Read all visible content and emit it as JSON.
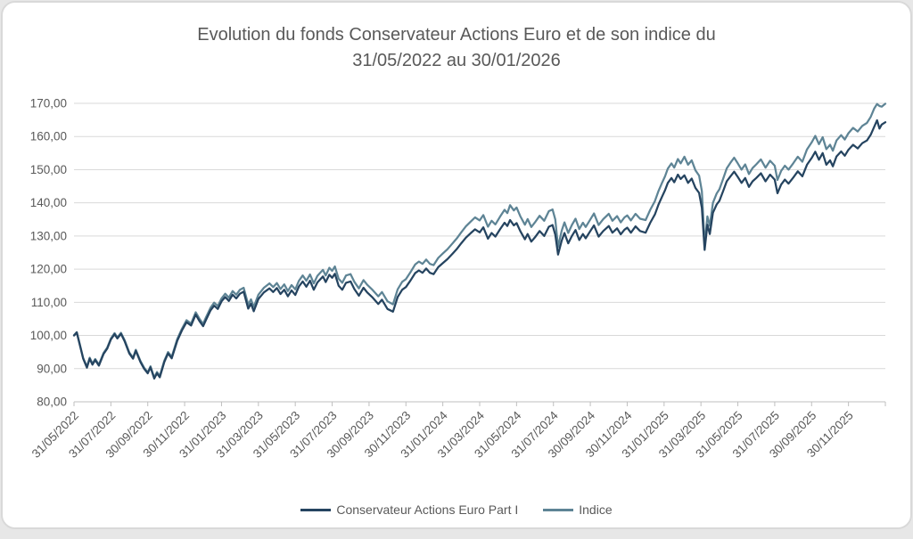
{
  "chart_data": {
    "type": "line",
    "title_line1": "Evolution du fonds Conservateur Actions Euro et de son indice du",
    "title_line2": "31/05/2022 au 30/01/2026",
    "grid": true,
    "legend_position": "bottom",
    "ylim": [
      80,
      170
    ],
    "y_tick_step": 10,
    "y_tick_labels": [
      "80,00",
      "90,00",
      "100,00",
      "110,00",
      "120,00",
      "130,00",
      "140,00",
      "150,00",
      "160,00",
      "170,00"
    ],
    "x_months_total": 44,
    "x_tick_interval_months": 2,
    "x_tick_labels": [
      "31/05/2022",
      "31/07/2022",
      "30/09/2022",
      "30/11/2022",
      "31/01/2023",
      "31/03/2023",
      "31/05/2023",
      "31/07/2023",
      "30/09/2023",
      "30/11/2023",
      "31/01/2024",
      "31/03/2024",
      "31/05/2024",
      "31/07/2024",
      "30/09/2024",
      "30/11/2024",
      "31/01/2025",
      "31/03/2025",
      "31/05/2025",
      "31/07/2025",
      "30/09/2025",
      "30/11/2025"
    ],
    "series": [
      {
        "name": "Conservateur Actions Euro Part I",
        "color": "#254460"
      },
      {
        "name": "Indice",
        "color": "#5e8495"
      }
    ],
    "colors": {
      "grid": "#d9d9d9",
      "axis": "#bfbfbf",
      "text": "#595959"
    },
    "points_format": [
      "months_since_start",
      "fund_value",
      "indice_value"
    ],
    "points": [
      [
        0,
        100,
        100.1
      ],
      [
        0.15,
        100.9,
        101
      ],
      [
        0.3,
        97.5,
        97.7
      ],
      [
        0.5,
        93,
        93.2
      ],
      [
        0.7,
        90.3,
        90.6
      ],
      [
        0.85,
        93,
        93.3
      ],
      [
        1,
        91.2,
        91.5
      ],
      [
        1.15,
        92.6,
        92.9
      ],
      [
        1.35,
        90.9,
        91.2
      ],
      [
        1.6,
        94.4,
        94.7
      ],
      [
        1.8,
        96,
        96.3
      ],
      [
        2,
        98.8,
        99.1
      ],
      [
        2.2,
        100.4,
        100.7
      ],
      [
        2.35,
        99.1,
        99.4
      ],
      [
        2.55,
        100.5,
        100.8
      ],
      [
        2.75,
        98.2,
        98.5
      ],
      [
        3,
        94.6,
        94.9
      ],
      [
        3.2,
        93,
        93.3
      ],
      [
        3.35,
        95.4,
        95.7
      ],
      [
        3.6,
        92,
        92.3
      ],
      [
        3.8,
        90,
        90.3
      ],
      [
        4,
        88.6,
        88.9
      ],
      [
        4.15,
        90.4,
        90.7
      ],
      [
        4.35,
        87,
        87.3
      ],
      [
        4.5,
        88.6,
        89
      ],
      [
        4.65,
        87.4,
        87.8
      ],
      [
        4.9,
        92,
        92.4
      ],
      [
        5.1,
        94.6,
        95
      ],
      [
        5.3,
        93.1,
        93.6
      ],
      [
        5.6,
        98.4,
        98.9
      ],
      [
        5.85,
        101.5,
        102
      ],
      [
        6.1,
        104,
        104.6
      ],
      [
        6.35,
        103,
        103.6
      ],
      [
        6.6,
        106.3,
        107
      ],
      [
        6.8,
        104.4,
        105.1
      ],
      [
        7,
        102.8,
        103.5
      ],
      [
        7.15,
        104.6,
        105.4
      ],
      [
        7.4,
        107.5,
        108.3
      ],
      [
        7.6,
        109,
        109.9
      ],
      [
        7.8,
        108,
        108.9
      ],
      [
        8,
        110.3,
        111.2
      ],
      [
        8.2,
        111.6,
        112.6
      ],
      [
        8.4,
        110.4,
        111.4
      ],
      [
        8.6,
        112.3,
        113.4
      ],
      [
        8.8,
        111.2,
        112.3
      ],
      [
        9,
        112.6,
        113.8
      ],
      [
        9.2,
        113.2,
        114.4
      ],
      [
        9.45,
        108.1,
        109.3
      ],
      [
        9.6,
        109.6,
        110.9
      ],
      [
        9.75,
        107.3,
        108.6
      ],
      [
        10,
        111,
        112.3
      ],
      [
        10.3,
        113,
        114.4
      ],
      [
        10.6,
        114.2,
        115.7
      ],
      [
        10.8,
        113.1,
        114.6
      ],
      [
        11,
        114.3,
        115.8
      ],
      [
        11.2,
        112.5,
        114
      ],
      [
        11.4,
        113.8,
        115.4
      ],
      [
        11.6,
        111.8,
        113.4
      ],
      [
        11.8,
        113.6,
        115.2
      ],
      [
        12,
        112.2,
        113.9
      ],
      [
        12.2,
        114.8,
        116.5
      ],
      [
        12.4,
        116.3,
        118.1
      ],
      [
        12.6,
        114.7,
        116.5
      ],
      [
        12.8,
        116.5,
        118.4
      ],
      [
        13,
        113.8,
        115.7
      ],
      [
        13.2,
        116,
        118
      ],
      [
        13.5,
        117.8,
        119.8
      ],
      [
        13.65,
        116.1,
        118.1
      ],
      [
        13.85,
        118.3,
        120.4
      ],
      [
        14,
        117.4,
        119.5
      ],
      [
        14.15,
        118.6,
        120.8
      ],
      [
        14.35,
        115,
        117.1
      ],
      [
        14.55,
        113.8,
        115.9
      ],
      [
        14.75,
        115.9,
        118.1
      ],
      [
        15,
        116.3,
        118.5
      ],
      [
        15.2,
        114,
        116.2
      ],
      [
        15.45,
        112,
        114.2
      ],
      [
        15.7,
        114.4,
        116.7
      ],
      [
        15.9,
        113,
        115.3
      ],
      [
        16.2,
        111.4,
        113.7
      ],
      [
        16.5,
        109.5,
        111.8
      ],
      [
        16.7,
        110.8,
        113.1
      ],
      [
        17,
        108,
        110.3
      ],
      [
        17.3,
        107.2,
        109.4
      ],
      [
        17.55,
        111.6,
        113.9
      ],
      [
        17.8,
        113.8,
        116.2
      ],
      [
        18,
        114.6,
        117
      ],
      [
        18.25,
        116.6,
        119.1
      ],
      [
        18.5,
        118.8,
        121.4
      ],
      [
        18.7,
        119.6,
        122.3
      ],
      [
        18.9,
        118.9,
        121.6
      ],
      [
        19.1,
        120.2,
        122.9
      ],
      [
        19.3,
        118.9,
        121.6
      ],
      [
        19.5,
        118.5,
        121.2
      ],
      [
        19.75,
        120.6,
        123.4
      ],
      [
        20,
        121.8,
        124.7
      ],
      [
        20.25,
        123,
        126
      ],
      [
        20.5,
        124.5,
        127.6
      ],
      [
        20.75,
        126,
        129.2
      ],
      [
        21,
        127.8,
        131.1
      ],
      [
        21.25,
        129.5,
        132.9
      ],
      [
        21.5,
        130.8,
        134.3
      ],
      [
        21.75,
        132,
        135.6
      ],
      [
        22,
        131.1,
        134.7
      ],
      [
        22.2,
        132.6,
        136.3
      ],
      [
        22.45,
        129.2,
        132.8
      ],
      [
        22.65,
        130.9,
        134.6
      ],
      [
        22.85,
        129.8,
        133.5
      ],
      [
        23.1,
        132,
        135.8
      ],
      [
        23.35,
        134,
        137.9
      ],
      [
        23.5,
        133,
        136.9
      ],
      [
        23.65,
        134.8,
        139.3
      ],
      [
        23.85,
        133.2,
        137.7
      ],
      [
        24,
        133.9,
        138.6
      ],
      [
        24.2,
        131.5,
        136
      ],
      [
        24.45,
        129,
        133.4
      ],
      [
        24.6,
        130.6,
        135.1
      ],
      [
        24.8,
        128.3,
        132.7
      ],
      [
        25,
        129.6,
        134.1
      ],
      [
        25.25,
        131.5,
        136.1
      ],
      [
        25.5,
        130,
        134.6
      ],
      [
        25.75,
        132.8,
        137.5
      ],
      [
        25.95,
        133.3,
        138
      ],
      [
        26.1,
        130.4,
        135
      ],
      [
        26.25,
        124.4,
        126.7
      ],
      [
        26.45,
        128.6,
        131.6
      ],
      [
        26.6,
        130.9,
        134.1
      ],
      [
        26.8,
        127.8,
        130.9
      ],
      [
        27,
        130,
        133.3
      ],
      [
        27.2,
        131.8,
        135.2
      ],
      [
        27.4,
        128.8,
        132.1
      ],
      [
        27.6,
        130.6,
        134
      ],
      [
        27.75,
        129.3,
        132.7
      ],
      [
        28,
        131.5,
        135
      ],
      [
        28.2,
        133.2,
        136.8
      ],
      [
        28.45,
        129.8,
        133.3
      ],
      [
        28.7,
        131.5,
        135.1
      ],
      [
        29,
        133,
        136.7
      ],
      [
        29.2,
        131,
        134.6
      ],
      [
        29.45,
        132.3,
        136
      ],
      [
        29.65,
        130.5,
        134.1
      ],
      [
        29.85,
        131.9,
        135.6
      ],
      [
        30,
        132.5,
        136.2
      ],
      [
        30.2,
        131,
        134.7
      ],
      [
        30.45,
        132.9,
        136.7
      ],
      [
        30.7,
        131.5,
        135.2
      ],
      [
        31,
        131,
        134.8
      ],
      [
        31.25,
        134,
        137.9
      ],
      [
        31.5,
        136.5,
        140.5
      ],
      [
        31.7,
        139.5,
        143.6
      ],
      [
        31.9,
        142,
        146.2
      ],
      [
        32.05,
        143.8,
        148
      ],
      [
        32.2,
        146,
        150.3
      ],
      [
        32.4,
        147.5,
        151.9
      ],
      [
        32.55,
        146.2,
        150.6
      ],
      [
        32.75,
        148.5,
        153.2
      ],
      [
        32.9,
        147.2,
        151.9
      ],
      [
        33.1,
        148.3,
        153.9
      ],
      [
        33.3,
        146,
        151.5
      ],
      [
        33.5,
        147.3,
        152.8
      ],
      [
        33.7,
        144.5,
        149.8
      ],
      [
        33.9,
        143,
        148.2
      ],
      [
        34.05,
        138.5,
        143.5
      ],
      [
        34.2,
        125.8,
        127.4
      ],
      [
        34.35,
        133.4,
        135.9
      ],
      [
        34.48,
        130.6,
        133.1
      ],
      [
        34.65,
        137,
        140
      ],
      [
        34.85,
        139.5,
        142.8
      ],
      [
        35,
        140.6,
        144.1
      ],
      [
        35.2,
        143.5,
        147.2
      ],
      [
        35.4,
        146.5,
        150.4
      ],
      [
        35.6,
        148,
        152.1
      ],
      [
        35.8,
        149.4,
        153.6
      ],
      [
        36,
        147.8,
        151.9
      ],
      [
        36.2,
        146,
        150
      ],
      [
        36.4,
        147.5,
        151.6
      ],
      [
        36.6,
        144.8,
        148.7
      ],
      [
        36.8,
        146.5,
        150.5
      ],
      [
        37,
        147.5,
        151.6
      ],
      [
        37.25,
        148.9,
        153.1
      ],
      [
        37.5,
        146.5,
        150.6
      ],
      [
        37.75,
        148.5,
        152.7
      ],
      [
        38,
        147,
        151.2
      ],
      [
        38.15,
        142.9,
        146.9
      ],
      [
        38.35,
        145.5,
        149.6
      ],
      [
        38.55,
        147,
        151.2
      ],
      [
        38.75,
        145.8,
        150
      ],
      [
        39,
        147.6,
        151.9
      ],
      [
        39.25,
        149.5,
        153.9
      ],
      [
        39.5,
        148,
        152.4
      ],
      [
        39.75,
        151.5,
        156.1
      ],
      [
        40,
        153.5,
        158.2
      ],
      [
        40.2,
        155.4,
        160.2
      ],
      [
        40.4,
        153,
        157.7
      ],
      [
        40.6,
        155,
        159.8
      ],
      [
        40.8,
        151.5,
        156.2
      ],
      [
        41,
        152.8,
        157.5
      ],
      [
        41.15,
        151,
        155.7
      ],
      [
        41.35,
        154,
        158.8
      ],
      [
        41.6,
        155.5,
        160.4
      ],
      [
        41.8,
        154.2,
        159.1
      ],
      [
        42,
        156,
        161
      ],
      [
        42.25,
        157.5,
        162.6
      ],
      [
        42.5,
        156.4,
        161.5
      ],
      [
        42.75,
        158,
        163.2
      ],
      [
        43,
        158.8,
        164.1
      ],
      [
        43.2,
        160.5,
        165.9
      ],
      [
        43.4,
        163,
        168.5
      ],
      [
        43.55,
        164.9,
        169.8
      ],
      [
        43.68,
        162.4,
        169.2
      ],
      [
        43.8,
        163.6,
        169
      ],
      [
        44,
        164.3,
        169.9
      ]
    ]
  }
}
